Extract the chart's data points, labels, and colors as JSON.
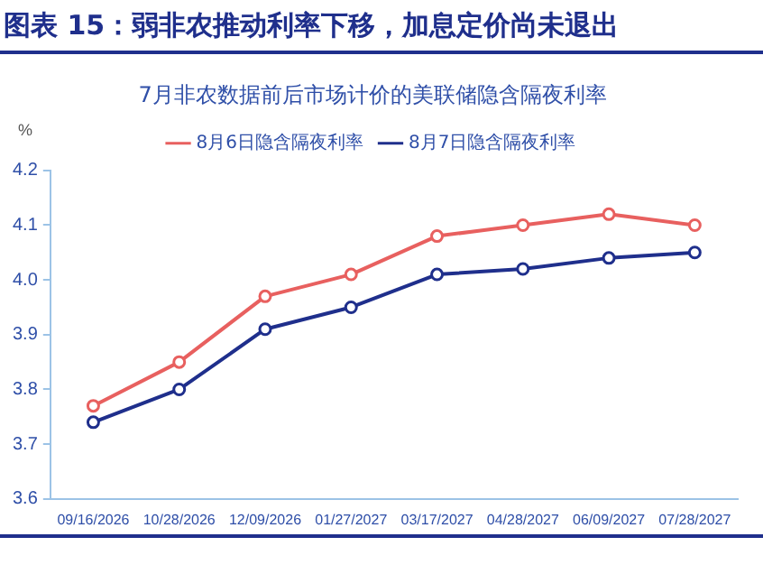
{
  "chart_data": {
    "type": "line",
    "title": "图表 15：弱非农推动利率下移，加息定价尚未退出",
    "subtitle": "7月非农数据前后市场计价的美联储隐含隔夜利率",
    "ylabel": "%",
    "categories": [
      "09/16/2026",
      "10/28/2026",
      "12/09/2026",
      "01/27/2027",
      "03/17/2027",
      "04/28/2027",
      "06/09/2027",
      "07/28/2027"
    ],
    "series": [
      {
        "name": "8月6日隐含隔夜利率",
        "color": "#e8605f",
        "values": [
          3.77,
          3.85,
          3.97,
          4.01,
          4.08,
          4.1,
          4.12,
          4.1
        ]
      },
      {
        "name": "8月7日隐含隔夜利率",
        "color": "#1f2f8c",
        "values": [
          3.74,
          3.8,
          3.91,
          3.95,
          4.01,
          4.02,
          4.04,
          4.05
        ]
      }
    ],
    "ylim": [
      3.6,
      4.2
    ],
    "yticks": [
      3.6,
      3.7,
      3.8,
      3.9,
      {
        "value": 4,
        "label": "4.0"
      },
      4.1,
      4.2
    ],
    "grid": false,
    "legend": "top",
    "marker": "circle",
    "line_style": "solid"
  }
}
